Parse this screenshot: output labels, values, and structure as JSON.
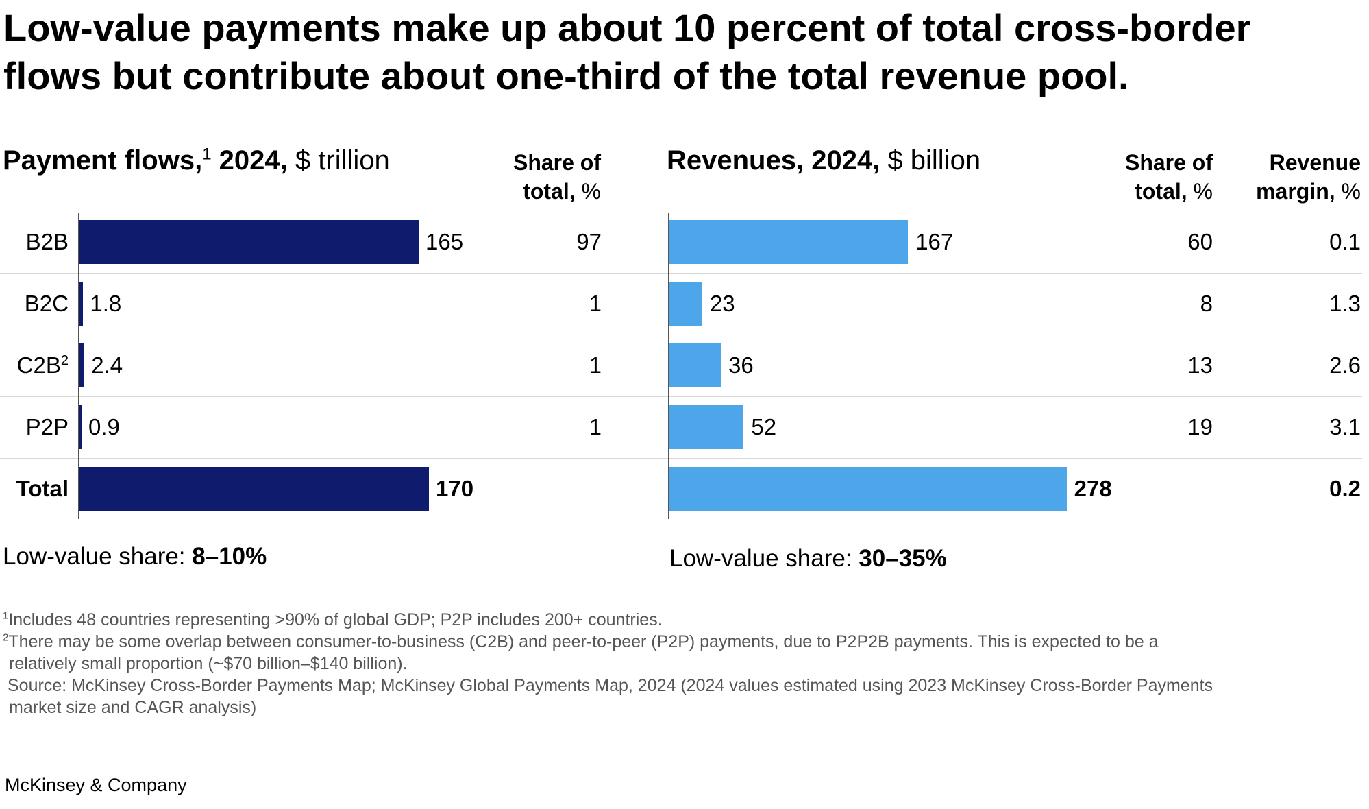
{
  "title": "Low-value payments make up about 10 percent of total cross-border flows but contribute about one-third of the total revenue pool.",
  "chart_data": [
    {
      "type": "bar",
      "orientation": "horizontal",
      "title_bold": "Payment flows,",
      "title_sup": "1",
      "title_year": " 2024,",
      "title_unit": " $ trillion",
      "categories": [
        "B2B",
        "B2C",
        "C2B",
        "P2P",
        "Total"
      ],
      "category_sups": [
        "",
        "",
        "2",
        "",
        ""
      ],
      "values": [
        165,
        1.8,
        2.4,
        0.9,
        170
      ],
      "value_labels": [
        "165",
        "1.8",
        "2.4",
        "0.9",
        "170"
      ],
      "share_header_line1": "Share of",
      "share_header_line2": "total,",
      "share_header_unit": " %",
      "share_of_total": [
        "97",
        "1",
        "1",
        "1",
        ""
      ],
      "color": "#0f1c6e",
      "low_value_label": "Low-value share: ",
      "low_value_share": "8–10%"
    },
    {
      "type": "bar",
      "orientation": "horizontal",
      "title_bold": "Revenues, 2024,",
      "title_unit": " $ billion",
      "categories": [
        "B2B",
        "B2C",
        "C2B",
        "P2P",
        "Total"
      ],
      "values": [
        167,
        23,
        36,
        52,
        278
      ],
      "value_labels": [
        "167",
        "23",
        "36",
        "52",
        "278"
      ],
      "share_header_line1": "Share of",
      "share_header_line2": "total,",
      "share_header_unit": " %",
      "share_of_total": [
        "60",
        "8",
        "13",
        "19",
        ""
      ],
      "margin_header_line1": "Revenue",
      "margin_header_line2": "margin,",
      "margin_header_unit": " %",
      "revenue_margin": [
        "0.1",
        "1.3",
        "2.6",
        "3.1",
        "0.2"
      ],
      "color": "#4da6ea",
      "low_value_label": "Low-value share: ",
      "low_value_share": "30–35%"
    }
  ],
  "footnotes": {
    "fn1_marker": "1",
    "fn1": "Includes 48 countries representing >90% of global GDP; P2P includes 200+ countries.",
    "fn2_marker": "2",
    "fn2_line1": "There may be some overlap between consumer-to-business (C2B) and peer-to-peer (P2P) payments, due to P2P2B payments. This is expected to be a",
    "fn2_line2": "relatively small proportion (~$70 billion–$140 billion).",
    "source_line1": "Source: McKinsey Cross-Border Payments Map; McKinsey Global Payments Map, 2024 (2024 values estimated using 2023 McKinsey Cross-Border Payments",
    "source_line2": "market size and CAGR analysis)"
  },
  "brand": "McKinsey & Company"
}
